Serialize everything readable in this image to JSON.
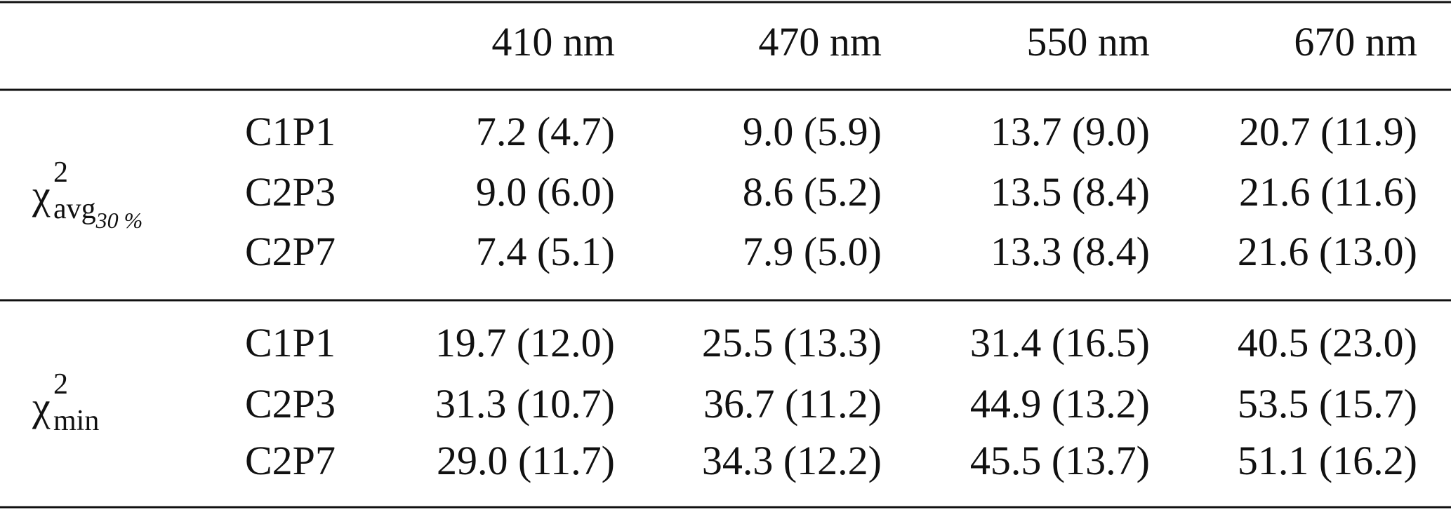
{
  "table": {
    "columns": [
      "410 nm",
      "470 nm",
      "550 nm",
      "670 nm"
    ],
    "groups": [
      {
        "label": {
          "symbol": "χ",
          "sup": "2",
          "sub": "avg",
          "subsub": "30 %"
        },
        "rows": [
          {
            "name": "C1P1",
            "cells": [
              "7.2 (4.7)",
              "9.0 (5.9)",
              "13.7 (9.0)",
              "20.7 (11.9)"
            ]
          },
          {
            "name": "C2P3",
            "cells": [
              "9.0 (6.0)",
              "8.6 (5.2)",
              "13.5 (8.4)",
              "21.6 (11.6)"
            ]
          },
          {
            "name": "C2P7",
            "cells": [
              "7.4 (5.1)",
              "7.9 (5.0)",
              "13.3 (8.4)",
              "21.6 (13.0)"
            ]
          }
        ]
      },
      {
        "label": {
          "symbol": "χ",
          "sup": "2",
          "sub": "min"
        },
        "rows": [
          {
            "name": "C1P1",
            "cells": [
              "19.7 (12.0)",
              "25.5 (13.3)",
              "31.4 (16.5)",
              "40.5 (23.0)"
            ]
          },
          {
            "name": "C2P3",
            "cells": [
              "31.3 (10.7)",
              "36.7 (11.2)",
              "44.9 (13.2)",
              "53.5 (15.7)"
            ]
          },
          {
            "name": "C2P7",
            "cells": [
              "29.0 (11.7)",
              "34.3 (12.2)",
              "45.5 (13.7)",
              "51.1 (16.2)"
            ]
          }
        ]
      }
    ]
  }
}
